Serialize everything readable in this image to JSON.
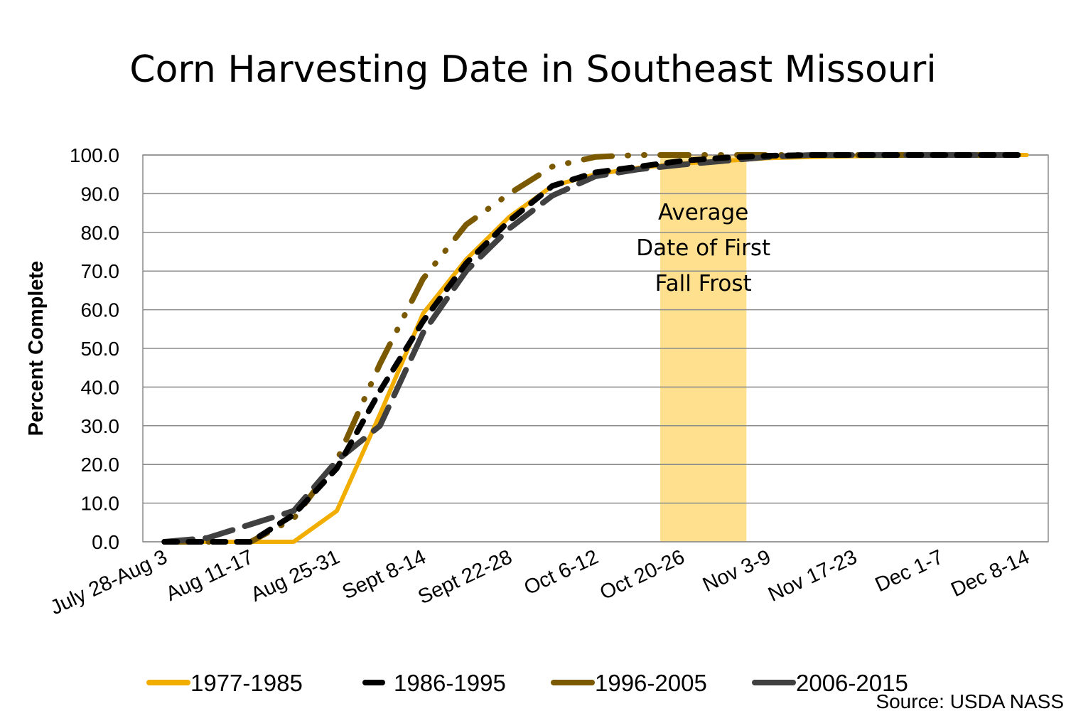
{
  "chart_data": {
    "type": "line",
    "title": "Corn Harvesting Date in Southeast Missouri",
    "xlabel": "",
    "ylabel": "Percent Complete",
    "ylim": [
      0,
      100
    ],
    "yticks": [
      "0.0",
      "10.0",
      "20.0",
      "30.0",
      "40.0",
      "50.0",
      "60.0",
      "70.0",
      "80.0",
      "90.0",
      "100.0"
    ],
    "x": [
      0,
      1,
      2,
      3,
      4,
      5,
      6,
      7,
      8,
      9,
      10,
      11,
      12,
      13,
      14,
      15,
      16,
      17,
      18,
      19,
      20
    ],
    "xtick_labels": [
      "July 28-Aug 3",
      "",
      "Aug 11-17",
      "",
      "Aug 25-31",
      "",
      "Sept 8-14",
      "",
      "Sept 22-28",
      "",
      "Oct 6-12",
      "",
      "Oct 20-26",
      "",
      "Nov 3-9",
      "",
      "Nov 17-23",
      "",
      "Dec 1-7",
      "",
      "Dec 8-14"
    ],
    "grid": true,
    "legend_position": "bottom",
    "series": [
      {
        "name": "1977-1985",
        "color": "#F2AE00",
        "style": "solid",
        "values": [
          0,
          0,
          0,
          0,
          8,
          33,
          59,
          73,
          84,
          92,
          95,
          96.7,
          97.8,
          98.5,
          99.2,
          99.5,
          99.7,
          99.8,
          100,
          100,
          100
        ]
      },
      {
        "name": "1986-1995",
        "color": "#000000",
        "style": "dash",
        "values": [
          0,
          0,
          0,
          7,
          19,
          39,
          57,
          72,
          83,
          92,
          95.5,
          97,
          98.5,
          99.3,
          99.8,
          100,
          100,
          100,
          100,
          100,
          100
        ]
      },
      {
        "name": "1996-2005",
        "color": "#7A5900",
        "style": "dashdot",
        "values": [
          0,
          0,
          0,
          6,
          21,
          46,
          68,
          82,
          90,
          97,
          99.5,
          100,
          100,
          100,
          100,
          100,
          100,
          100,
          100,
          100,
          100
        ]
      },
      {
        "name": "2006-2015",
        "color": "#404040",
        "style": "longdash",
        "values": [
          0,
          1,
          4.5,
          8,
          21,
          30,
          54,
          70,
          81,
          89.5,
          94.5,
          96.3,
          97.5,
          98.5,
          99.5,
          100,
          100,
          100,
          100,
          100,
          100
        ]
      }
    ],
    "annotation": {
      "lines": [
        "Average",
        "Date of First",
        "Fall Frost"
      ],
      "x_range": [
        11.5,
        13.5
      ],
      "color": "#FFE08F"
    },
    "source": "Source: USDA NASS"
  }
}
